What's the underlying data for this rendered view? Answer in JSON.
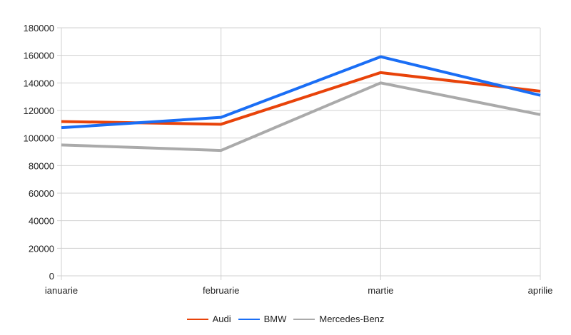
{
  "chart_data": {
    "type": "line",
    "title": "",
    "xlabel": "",
    "ylabel": "",
    "categories": [
      "ianuarie",
      "februarie",
      "martie",
      "aprilie"
    ],
    "series": [
      {
        "name": "Audi",
        "color": "#e8430a",
        "values": [
          112000,
          110000,
          147500,
          134000
        ]
      },
      {
        "name": "BMW",
        "color": "#1a6ef5",
        "values": [
          107500,
          115000,
          159000,
          131000
        ]
      },
      {
        "name": "Mercedes-Benz",
        "color": "#aaaaaa",
        "values": [
          95000,
          91000,
          140000,
          117000
        ]
      }
    ],
    "ylim": [
      0,
      180000
    ],
    "yticks": [
      0,
      20000,
      40000,
      60000,
      80000,
      100000,
      120000,
      140000,
      160000,
      180000
    ],
    "grid": true,
    "legend_position": "bottom"
  }
}
